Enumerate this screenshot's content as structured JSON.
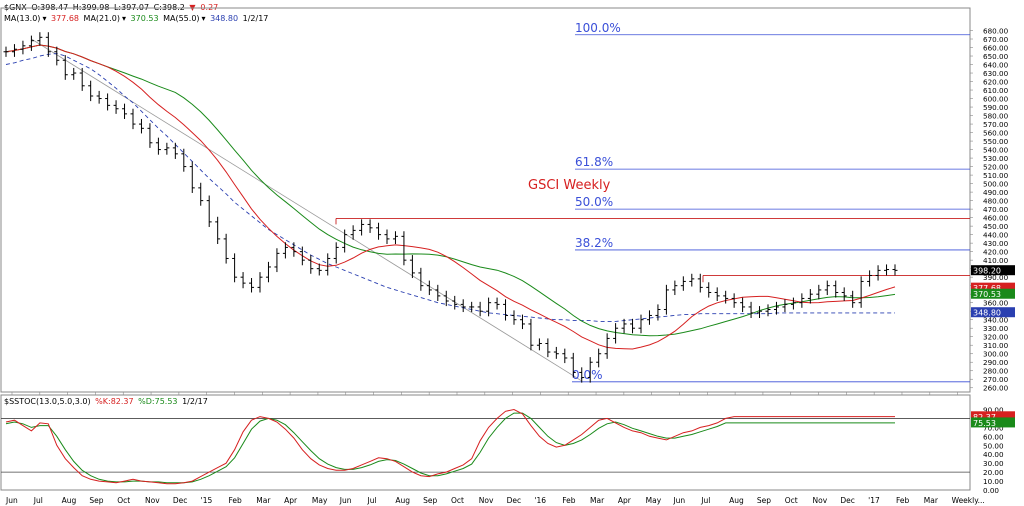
{
  "header": {
    "symbol": "$GNX",
    "open": "O:398.47",
    "high": "H:399.98",
    "low": "L:397.07",
    "close": "C:398.2",
    "change": "-0.27",
    "ma13": "MA(13.0)",
    "ma13_val": "377.68",
    "ma21": "MA(21.0)",
    "ma21_val": "370.53",
    "ma55": "MA(55.0)",
    "ma55_val": "348.80",
    "date": "1/2/17"
  },
  "stoch_header": {
    "label": "$SSTOC(13.0,5.0,3.0)",
    "k": "%K:82.37",
    "d": "%D:75.53",
    "date": "1/2/17"
  },
  "colors": {
    "ma13": "#d62020",
    "ma21": "#1a8a1a",
    "ma55": "#2a3fb0",
    "fib": "#3a4fd8",
    "resistance": "#c81e1e",
    "trend": "#9a9a9a",
    "price_tag": "#000000",
    "ma13_tag": "#d62020",
    "ma21_tag": "#1a8a1a",
    "ma55_tag": "#2a3fb0"
  },
  "chart_data": [
    {
      "type": "ohlc",
      "title": "GSCI Weekly",
      "ylim": [
        255,
        690
      ],
      "yticks": [
        260,
        270,
        280,
        290,
        300,
        310,
        320,
        330,
        340,
        350,
        360,
        370,
        380,
        390,
        400,
        410,
        420,
        430,
        440,
        450,
        460,
        470,
        480,
        490,
        500,
        510,
        520,
        530,
        540,
        550,
        560,
        570,
        580,
        590,
        600,
        610,
        620,
        630,
        640,
        650,
        660,
        670,
        680
      ],
      "x_labels": [
        "Jun",
        "Jul",
        "Aug",
        "Sep",
        "Oct",
        "Nov",
        "Dec",
        "'15",
        "Feb",
        "Mar",
        "Apr",
        "May",
        "Jun",
        "Jul",
        "Aug",
        "Sep",
        "Oct",
        "Nov",
        "Dec",
        "'16",
        "Feb",
        "Mar",
        "Apr",
        "May",
        "Jun",
        "Jul",
        "Aug",
        "Sep",
        "Oct",
        "Nov",
        "Dec",
        "'17",
        "Feb",
        "Mar",
        "Weekly..."
      ],
      "closes": [
        655,
        658,
        662,
        668,
        672,
        655,
        645,
        628,
        630,
        615,
        603,
        600,
        592,
        588,
        582,
        570,
        565,
        548,
        540,
        542,
        535,
        520,
        495,
        480,
        455,
        435,
        412,
        390,
        383,
        378,
        390,
        402,
        418,
        425,
        420,
        410,
        400,
        398,
        412,
        425,
        440,
        445,
        452,
        448,
        440,
        435,
        438,
        410,
        395,
        380,
        375,
        368,
        362,
        358,
        355,
        355,
        350,
        360,
        358,
        345,
        340,
        335,
        310,
        312,
        302,
        300,
        295,
        278,
        272,
        290,
        300,
        318,
        330,
        335,
        330,
        340,
        345,
        352,
        375,
        380,
        385,
        388,
        378,
        372,
        368,
        365,
        360,
        355,
        348,
        350,
        352,
        355,
        358,
        360,
        365,
        370,
        375,
        380,
        372,
        368,
        360,
        385,
        392,
        398,
        399,
        398
      ],
      "fibonacci": [
        {
          "label": "100.0%",
          "value": 675
        },
        {
          "label": "61.8%",
          "value": 517
        },
        {
          "label": "50.0%",
          "value": 470
        },
        {
          "label": "38.2%",
          "value": 422
        },
        {
          "label": "0.0%",
          "value": 267
        }
      ],
      "resistance_levels": [
        459,
        392
      ],
      "last_values": {
        "price": "398.20",
        "ma13": "377.68",
        "ma21": "370.53",
        "ma55": "348.80"
      }
    },
    {
      "type": "line",
      "title": "$SSTOC(13.0,5.0,3.0)",
      "ylim": [
        0,
        95
      ],
      "yticks": [
        0,
        10,
        20,
        30,
        40,
        50,
        60,
        70,
        80,
        90
      ],
      "ytick_labels": [
        "0.00",
        "10.00",
        "20.00",
        "30.00",
        "40.00",
        "50.00",
        "60.00",
        "70.00",
        "80.00",
        "90.00"
      ],
      "reference_lines": [
        80,
        20
      ],
      "series": [
        {
          "name": "%K",
          "values": [
            76,
            78,
            72,
            66,
            75,
            74,
            50,
            35,
            25,
            16,
            12,
            10,
            9,
            8,
            10,
            12,
            10,
            9,
            8,
            7,
            7,
            8,
            10,
            15,
            20,
            25,
            30,
            45,
            65,
            78,
            82,
            80,
            76,
            68,
            58,
            45,
            35,
            28,
            24,
            22,
            22,
            24,
            28,
            32,
            36,
            35,
            32,
            26,
            20,
            16,
            15,
            18,
            20,
            24,
            28,
            35,
            55,
            70,
            80,
            88,
            90,
            85,
            72,
            60,
            52,
            48,
            50,
            56,
            62,
            70,
            78,
            80,
            75,
            70,
            66,
            64,
            60,
            58,
            56,
            60,
            64,
            66,
            70,
            72,
            75,
            80,
            82,
            82,
            82,
            82,
            82,
            82,
            82,
            82,
            82,
            82,
            82,
            82,
            82,
            82,
            82,
            82,
            82,
            82,
            82,
            82
          ]
        },
        {
          "name": "%D",
          "values": [
            74,
            76,
            74,
            70,
            72,
            72,
            60,
            45,
            32,
            22,
            16,
            12,
            10,
            9,
            9,
            10,
            10,
            9,
            9,
            8,
            8,
            8,
            9,
            12,
            16,
            21,
            26,
            36,
            52,
            68,
            77,
            80,
            78,
            73,
            64,
            54,
            44,
            35,
            29,
            25,
            23,
            23,
            25,
            28,
            32,
            34,
            33,
            29,
            24,
            19,
            16,
            16,
            18,
            21,
            24,
            29,
            42,
            58,
            70,
            80,
            86,
            86,
            80,
            70,
            60,
            53,
            50,
            52,
            56,
            62,
            69,
            74,
            76,
            73,
            69,
            66,
            63,
            60,
            58,
            58,
            60,
            62,
            65,
            68,
            71,
            75,
            75,
            75,
            75,
            75,
            75,
            75,
            75,
            75,
            75,
            75,
            75,
            75,
            75,
            75,
            75,
            75,
            75,
            75,
            75,
            75
          ]
        }
      ],
      "last_values": {
        "k": "82.37",
        "d": "75.53"
      }
    }
  ]
}
